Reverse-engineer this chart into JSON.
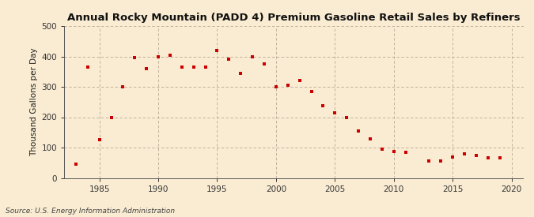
{
  "title": "Annual Rocky Mountain (PADD 4) Premium Gasoline Retail Sales by Refiners",
  "ylabel": "Thousand Gallons per Day",
  "source": "Source: U.S. Energy Information Administration",
  "background_color": "#faecd2",
  "marker_color": "#cc0000",
  "xlim": [
    1982,
    2021
  ],
  "ylim": [
    0,
    500
  ],
  "xticks": [
    1985,
    1990,
    1995,
    2000,
    2005,
    2010,
    2015,
    2020
  ],
  "yticks": [
    0,
    100,
    200,
    300,
    400,
    500
  ],
  "years": [
    1983,
    1984,
    1985,
    1986,
    1987,
    1988,
    1989,
    1990,
    1991,
    1992,
    1993,
    1994,
    1995,
    1996,
    1997,
    1998,
    1999,
    2000,
    2001,
    2002,
    2003,
    2004,
    2005,
    2006,
    2007,
    2008,
    2009,
    2010,
    2011,
    2013,
    2014,
    2015,
    2016,
    2017,
    2018,
    2019
  ],
  "values": [
    45,
    365,
    125,
    200,
    300,
    395,
    360,
    400,
    405,
    365,
    365,
    365,
    420,
    390,
    345,
    398,
    375,
    300,
    305,
    320,
    285,
    238,
    215,
    200,
    155,
    128,
    95,
    88,
    85,
    55,
    55,
    68,
    80,
    75,
    65,
    65
  ]
}
